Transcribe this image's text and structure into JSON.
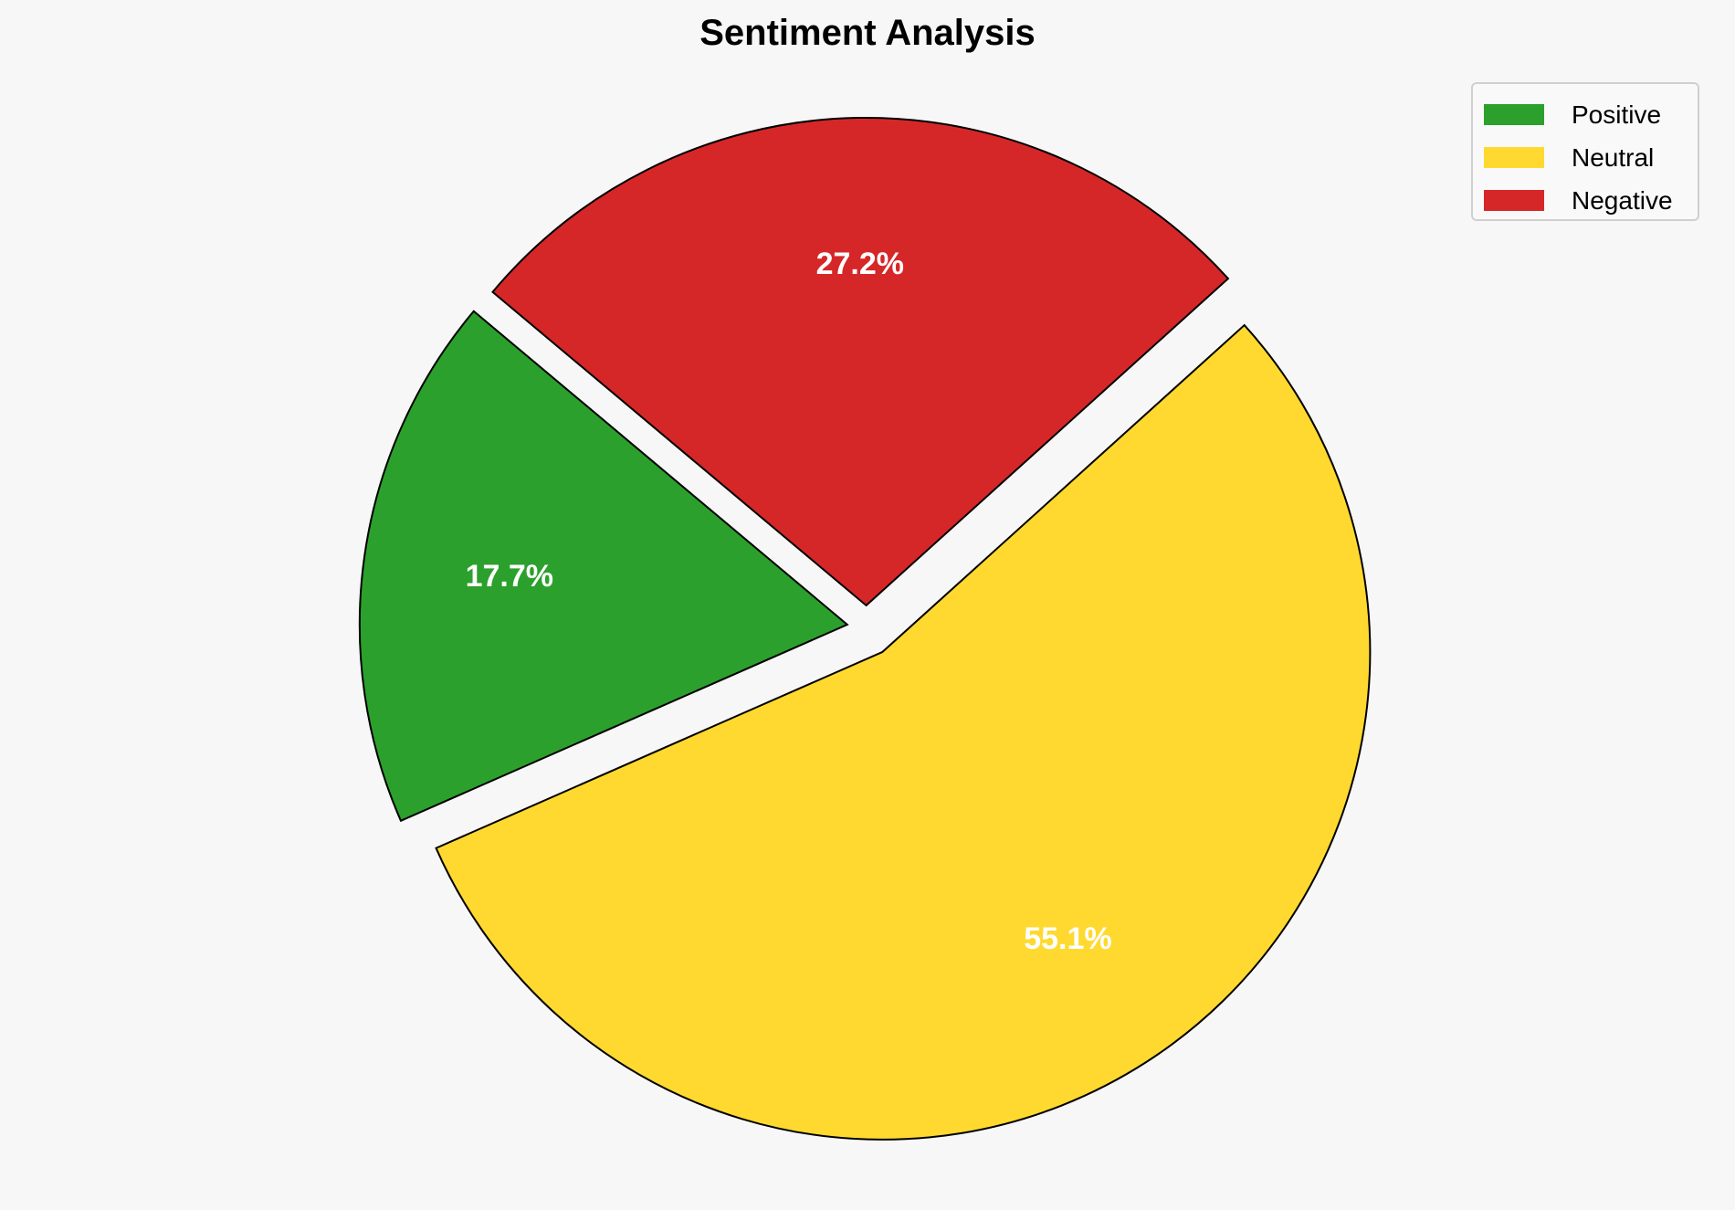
{
  "chart_data": {
    "type": "pie",
    "title": "Sentiment Analysis",
    "categories": [
      "Positive",
      "Neutral",
      "Negative"
    ],
    "values": [
      17.7,
      55.1,
      27.2
    ],
    "labels": [
      "17.7%",
      "55.1%",
      "27.2%"
    ],
    "colors": [
      "#2ca02c",
      "#ffd92f",
      "#d62728"
    ],
    "start_angle": 140,
    "direction": "counterclockwise",
    "exploded": true,
    "legend": {
      "entries": [
        "Positive",
        "Neutral",
        "Negative"
      ],
      "placement": "top-right"
    }
  }
}
